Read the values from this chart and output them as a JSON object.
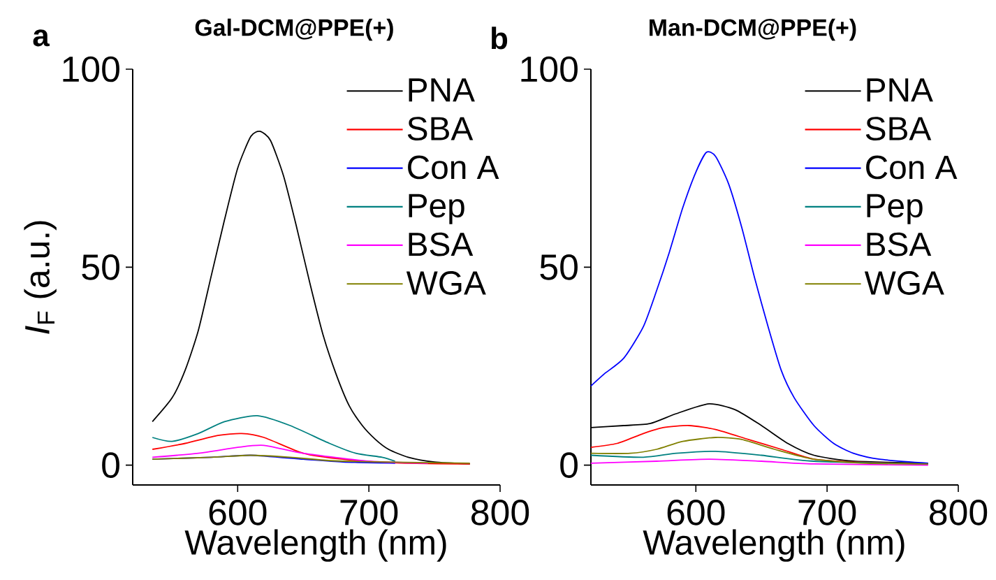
{
  "chart_data": [
    {
      "type": "line",
      "title": "Gal-DCM@PPE(+)",
      "annotations": [
        "a"
      ],
      "xlabel": "Wavelength (nm)",
      "ylabel": "*I*$_{F}$ (a.u.)",
      "xlim": [
        520,
        800
      ],
      "xticks": [
        600,
        700,
        800
      ],
      "ylim": [
        -5,
        100
      ],
      "yticks": [
        0,
        50,
        100
      ],
      "legend": "top right",
      "grid": false,
      "marker": "none",
      "line_style": "solid",
      "series": [
        {
          "name": "PNA",
          "color": "#000000",
          "x": [
            535,
            550,
            560,
            570,
            580,
            590,
            600,
            610,
            617,
            625,
            635,
            645,
            655,
            665,
            675,
            685,
            695,
            705,
            715,
            730,
            750,
            777
          ],
          "values": [
            11,
            17,
            24,
            34,
            48,
            62,
            75,
            83,
            84.3,
            82,
            73,
            60,
            46,
            33,
            23,
            15,
            10,
            6.5,
            4,
            2,
            0.8,
            0.3
          ]
        },
        {
          "name": "SBA",
          "color": "#ff0000",
          "x": [
            535,
            560,
            585,
            603,
            620,
            650,
            680,
            720,
            777
          ],
          "values": [
            4,
            5.5,
            7.5,
            8,
            7,
            3,
            1.5,
            0.6,
            0.3
          ]
        },
        {
          "name": "Con A",
          "color": "#0000ff",
          "x": [
            535,
            580,
            610,
            650,
            680,
            720
          ],
          "values": [
            1.5,
            2,
            2.5,
            1.5,
            0.8,
            0.5
          ]
        },
        {
          "name": "Pep",
          "color": "#008080",
          "x": [
            535,
            550,
            570,
            590,
            615,
            640,
            670,
            690,
            710,
            720
          ],
          "values": [
            7,
            6,
            8,
            11,
            12.5,
            10,
            5.5,
            3,
            2,
            1
          ]
        },
        {
          "name": "BSA",
          "color": "#ff00ff",
          "x": [
            535,
            570,
            600,
            620,
            650,
            700,
            745
          ],
          "values": [
            2,
            3,
            4.5,
            5,
            3,
            1,
            0.5
          ]
        },
        {
          "name": "WGA",
          "color": "#808000",
          "x": [
            535,
            580,
            610,
            640,
            680,
            777
          ],
          "values": [
            1.5,
            2,
            2.5,
            2,
            1,
            0.5
          ]
        }
      ]
    },
    {
      "type": "line",
      "title": "Man-DCM@PPE(+)",
      "annotations": [
        "b"
      ],
      "xlabel": "Wavelength (nm)",
      "xlim": [
        520,
        800
      ],
      "xticks": [
        600,
        700,
        800
      ],
      "ylim": [
        -5,
        100
      ],
      "yticks": [
        0,
        50,
        100
      ],
      "legend": "top right",
      "grid": false,
      "marker": "none",
      "line_style": "solid",
      "series": [
        {
          "name": "PNA",
          "color": "#000000",
          "x": [
            520,
            545,
            565,
            585,
            610,
            630,
            650,
            670,
            690,
            720,
            777
          ],
          "values": [
            9.5,
            10,
            10.5,
            13,
            15.5,
            14,
            10,
            5.5,
            2.5,
            1,
            0.5
          ]
        },
        {
          "name": "SBA",
          "color": "#ff0000",
          "x": [
            520,
            540,
            560,
            575,
            595,
            615,
            640,
            665,
            690,
            720,
            777
          ],
          "values": [
            4.5,
            5.5,
            8,
            9.5,
            10,
            9,
            6.5,
            4,
            1.5,
            0.8,
            0.3
          ]
        },
        {
          "name": "Con A",
          "color": "#0000ff",
          "x": [
            520,
            530,
            545,
            560,
            570,
            580,
            590,
            600,
            608,
            615,
            625,
            635,
            645,
            655,
            665,
            675,
            690,
            705,
            720,
            740,
            777
          ],
          "values": [
            20,
            23,
            27,
            35,
            44,
            54,
            65,
            74,
            79,
            78,
            71,
            60,
            47,
            35,
            24,
            17,
            10,
            5.5,
            3,
            1.5,
            0.5
          ]
        },
        {
          "name": "Pep",
          "color": "#008080",
          "x": [
            520,
            560,
            585,
            615,
            650,
            690,
            777
          ],
          "values": [
            2.5,
            2,
            3,
            3.5,
            2.5,
            1,
            0.3
          ]
        },
        {
          "name": "BSA",
          "color": "#ff00ff",
          "x": [
            520,
            570,
            610,
            650,
            690,
            777
          ],
          "values": [
            0.5,
            1,
            1.5,
            1,
            0.3,
            0
          ]
        },
        {
          "name": "WGA",
          "color": "#808000",
          "x": [
            520,
            550,
            570,
            590,
            615,
            635,
            660,
            690,
            730,
            777
          ],
          "values": [
            3,
            3,
            4,
            6,
            7,
            6.5,
            4,
            1.5,
            0.5,
            0.3
          ]
        }
      ]
    }
  ]
}
